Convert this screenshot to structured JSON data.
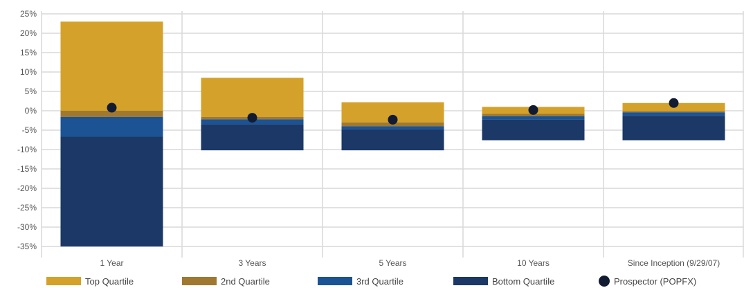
{
  "chart_data": {
    "type": "bar",
    "stacked": true,
    "categories": [
      "1 Year",
      "3 Years",
      "5 Years",
      "10 Years",
      "Since Inception (9/29/07)"
    ],
    "ylim": [
      -35,
      25
    ],
    "yticks": [
      25,
      20,
      15,
      10,
      5,
      0,
      -5,
      -10,
      -15,
      -20,
      -25,
      -30,
      -35
    ],
    "ytick_labels": [
      "25%",
      "20%",
      "15%",
      "10%",
      "5%",
      "0%",
      "-5%",
      "-10%",
      "-15%",
      "-20%",
      "-25%",
      "-30%",
      "-35%"
    ],
    "grid": true,
    "legend_position": "bottom",
    "quartile_bands": [
      {
        "name": "Top Quartile",
        "color": "#D4A22A",
        "ranges": [
          [
            0,
            23
          ],
          [
            -1.6,
            8.5
          ],
          [
            -3,
            2.2
          ],
          [
            -0.8,
            1.0
          ],
          [
            -0.1,
            2.0
          ]
        ]
      },
      {
        "name": "2nd Quartile",
        "color": "#A07830",
        "ranges": [
          [
            -1.6,
            0
          ],
          [
            -2.2,
            -1.6
          ],
          [
            -4,
            -3
          ],
          [
            -1.4,
            -0.8
          ],
          [
            -0.4,
            -0.1
          ]
        ]
      },
      {
        "name": "3rd Quartile",
        "color": "#1B5394",
        "ranges": [
          [
            -6.7,
            -1.6
          ],
          [
            -3.5,
            -2.2
          ],
          [
            -4.8,
            -4
          ],
          [
            -2.3,
            -1.4
          ],
          [
            -1.3,
            -0.4
          ]
        ]
      },
      {
        "name": "Bottom Quartile",
        "color": "#1B3866",
        "ranges": [
          [
            -35,
            -6.7
          ],
          [
            -10.2,
            -3.5
          ],
          [
            -10.2,
            -4.8
          ],
          [
            -7.6,
            -2.3
          ],
          [
            -7.6,
            -1.3
          ]
        ]
      }
    ],
    "markers": {
      "name": "Prospector (POPFX)",
      "color": "#111C33",
      "values": [
        0.8,
        -1.8,
        -2.3,
        0.2,
        2.0
      ]
    }
  },
  "legend": {
    "items": [
      {
        "label": "Top Quartile",
        "color": "#D4A22A",
        "shape": "swatch"
      },
      {
        "label": "2nd Quartile",
        "color": "#A07830",
        "shape": "swatch"
      },
      {
        "label": "3rd Quartile",
        "color": "#1B5394",
        "shape": "swatch"
      },
      {
        "label": "Bottom Quartile",
        "color": "#1B3866",
        "shape": "swatch"
      },
      {
        "label": "Prospector (POPFX)",
        "color": "#111C33",
        "shape": "dot"
      }
    ]
  }
}
